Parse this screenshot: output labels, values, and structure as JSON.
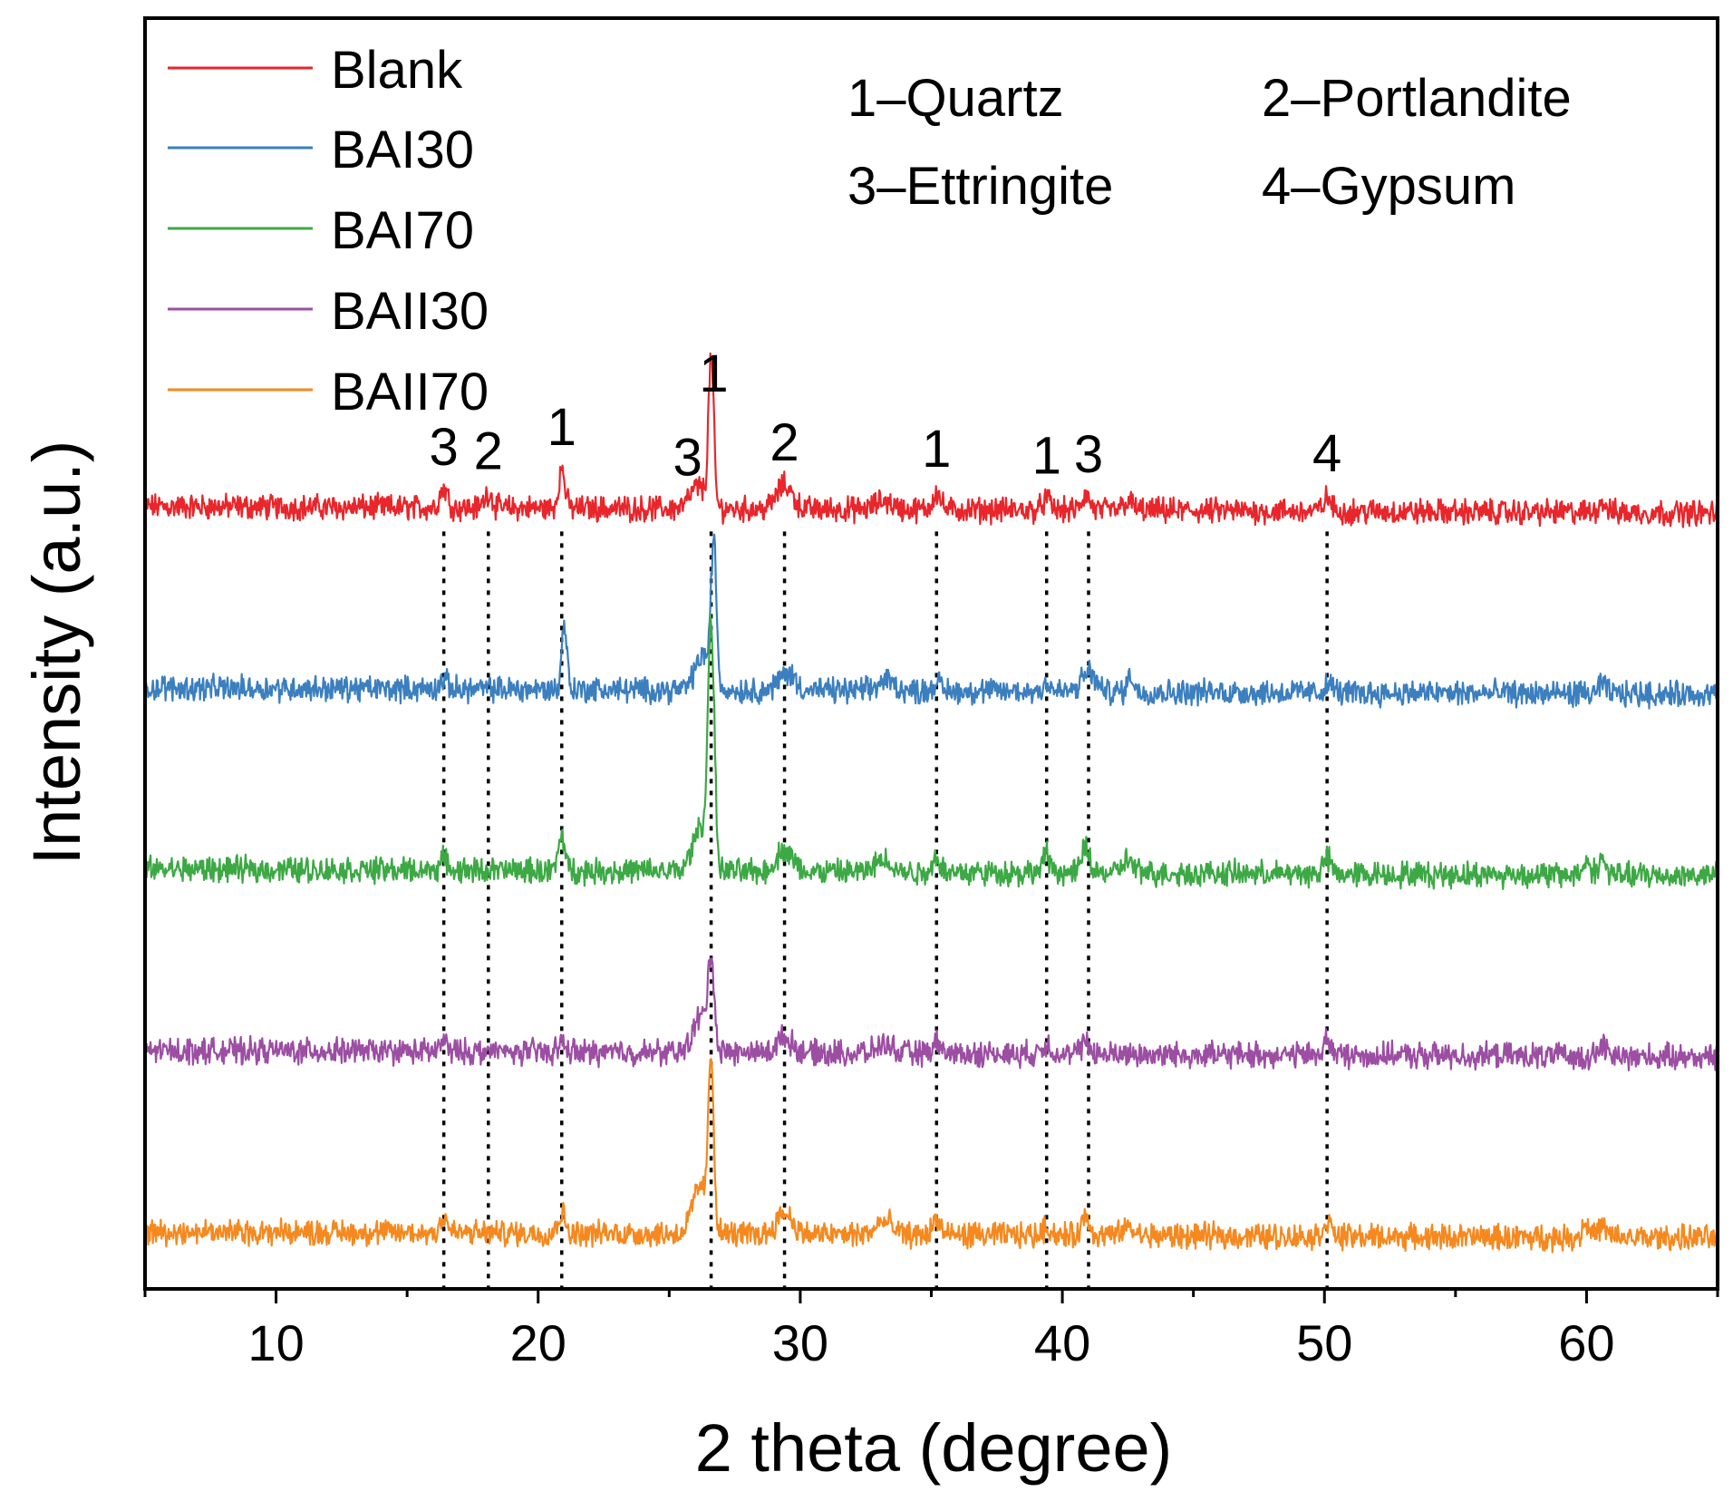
{
  "chart_data": {
    "type": "line",
    "title": "",
    "xlabel": "2 theta (degree)",
    "ylabel": "Intensity (a.u.)",
    "xlim": [
      5,
      65
    ],
    "x_ticks": [
      10,
      20,
      30,
      40,
      50,
      60
    ],
    "x_tick_labels": [
      "10",
      "20",
      "30",
      "40",
      "50",
      "60"
    ],
    "y_ticks_shown": false,
    "legend_position": "top-left",
    "series": [
      {
        "name": "Blank",
        "color": "#e8262b",
        "offset": 4,
        "baseline": 0.25,
        "peaks": [
          [
            16.4,
            0.45,
            0.15
          ],
          [
            18.1,
            0.35,
            0.15
          ],
          [
            20.9,
            0.9,
            0.12
          ],
          [
            26.1,
            0.5,
            0.3
          ],
          [
            26.6,
            3.4,
            0.1
          ],
          [
            29.4,
            0.55,
            0.3
          ],
          [
            33.2,
            0.2,
            0.3
          ],
          [
            35.2,
            0.4,
            0.15
          ],
          [
            39.4,
            0.25,
            0.15
          ],
          [
            40.9,
            0.35,
            0.15
          ],
          [
            42.5,
            0.2,
            0.2
          ],
          [
            50.1,
            0.3,
            0.15
          ],
          [
            60.6,
            0.25,
            0.15
          ]
        ]
      },
      {
        "name": "BAI30",
        "color": "#3b7fbf",
        "offset": 3,
        "baseline": 0.25,
        "peaks": [
          [
            16.4,
            0.2,
            0.15
          ],
          [
            21.0,
            1.5,
            0.1
          ],
          [
            26.3,
            0.8,
            0.3
          ],
          [
            26.7,
            3.2,
            0.1
          ],
          [
            29.5,
            0.4,
            0.3
          ],
          [
            33.3,
            0.25,
            0.3
          ],
          [
            35.2,
            0.2,
            0.15
          ],
          [
            39.4,
            0.2,
            0.15
          ],
          [
            41.0,
            0.45,
            0.25
          ],
          [
            42.6,
            0.45,
            0.1
          ],
          [
            50.2,
            0.2,
            0.15
          ],
          [
            60.6,
            0.2,
            0.15
          ]
        ]
      },
      {
        "name": "BAI70",
        "color": "#3ca944",
        "offset": 2,
        "baseline": 0.25,
        "peaks": [
          [
            16.4,
            0.25,
            0.15
          ],
          [
            20.9,
            0.85,
            0.12
          ],
          [
            26.2,
            1.0,
            0.3
          ],
          [
            26.6,
            5.4,
            0.12
          ],
          [
            29.4,
            0.5,
            0.3
          ],
          [
            33.2,
            0.3,
            0.3
          ],
          [
            35.2,
            0.35,
            0.15
          ],
          [
            39.4,
            0.4,
            0.15
          ],
          [
            40.9,
            0.6,
            0.15
          ],
          [
            42.5,
            0.3,
            0.2
          ],
          [
            50.1,
            0.35,
            0.15
          ],
          [
            60.0,
            0.3,
            0.15
          ],
          [
            60.6,
            0.35,
            0.15
          ]
        ]
      },
      {
        "name": "BAII30",
        "color": "#9c4ea3",
        "offset": 1,
        "baseline": 0.25,
        "peaks": [
          [
            16.4,
            0.2,
            0.15
          ],
          [
            20.9,
            0.2,
            0.15
          ],
          [
            26.2,
            0.8,
            0.3
          ],
          [
            26.6,
            1.95,
            0.12
          ],
          [
            29.4,
            0.35,
            0.3
          ],
          [
            33.2,
            0.2,
            0.3
          ],
          [
            35.2,
            0.25,
            0.15
          ],
          [
            39.4,
            0.25,
            0.15
          ],
          [
            40.9,
            0.3,
            0.15
          ],
          [
            50.1,
            0.35,
            0.15
          ],
          [
            60.6,
            0.25,
            0.15
          ]
        ]
      },
      {
        "name": "BAII70",
        "color": "#f5891f",
        "offset": 0,
        "baseline": 0.25,
        "peaks": [
          [
            16.4,
            0.35,
            0.15
          ],
          [
            20.9,
            0.45,
            0.15
          ],
          [
            26.2,
            1.1,
            0.3
          ],
          [
            26.6,
            3.7,
            0.1
          ],
          [
            29.4,
            0.5,
            0.3
          ],
          [
            33.2,
            0.3,
            0.3
          ],
          [
            35.2,
            0.35,
            0.15
          ],
          [
            39.4,
            0.2,
            0.15
          ],
          [
            40.9,
            0.45,
            0.15
          ],
          [
            42.5,
            0.2,
            0.2
          ],
          [
            50.1,
            0.35,
            0.15
          ],
          [
            60.0,
            0.35,
            0.15
          ],
          [
            60.6,
            0.25,
            0.15
          ]
        ]
      }
    ],
    "reference_lines_x": [
      16.4,
      18.1,
      20.9,
      26.6,
      29.4,
      35.2,
      39.4,
      41.0,
      50.1
    ],
    "peak_annotations": [
      {
        "x": 16.4,
        "label": "3"
      },
      {
        "x": 18.1,
        "label": "2"
      },
      {
        "x": 20.9,
        "label": "1"
      },
      {
        "x": 25.7,
        "label": "3"
      },
      {
        "x": 26.7,
        "label": "1"
      },
      {
        "x": 29.4,
        "label": "2"
      },
      {
        "x": 35.2,
        "label": "1"
      },
      {
        "x": 39.4,
        "label": "1"
      },
      {
        "x": 41.0,
        "label": "3"
      },
      {
        "x": 50.1,
        "label": "4"
      }
    ],
    "phase_key": [
      {
        "text": "1–Quartz"
      },
      {
        "text": "2–Portlandite"
      },
      {
        "text": "3–Ettringite"
      },
      {
        "text": "4–Gypsum"
      }
    ]
  }
}
